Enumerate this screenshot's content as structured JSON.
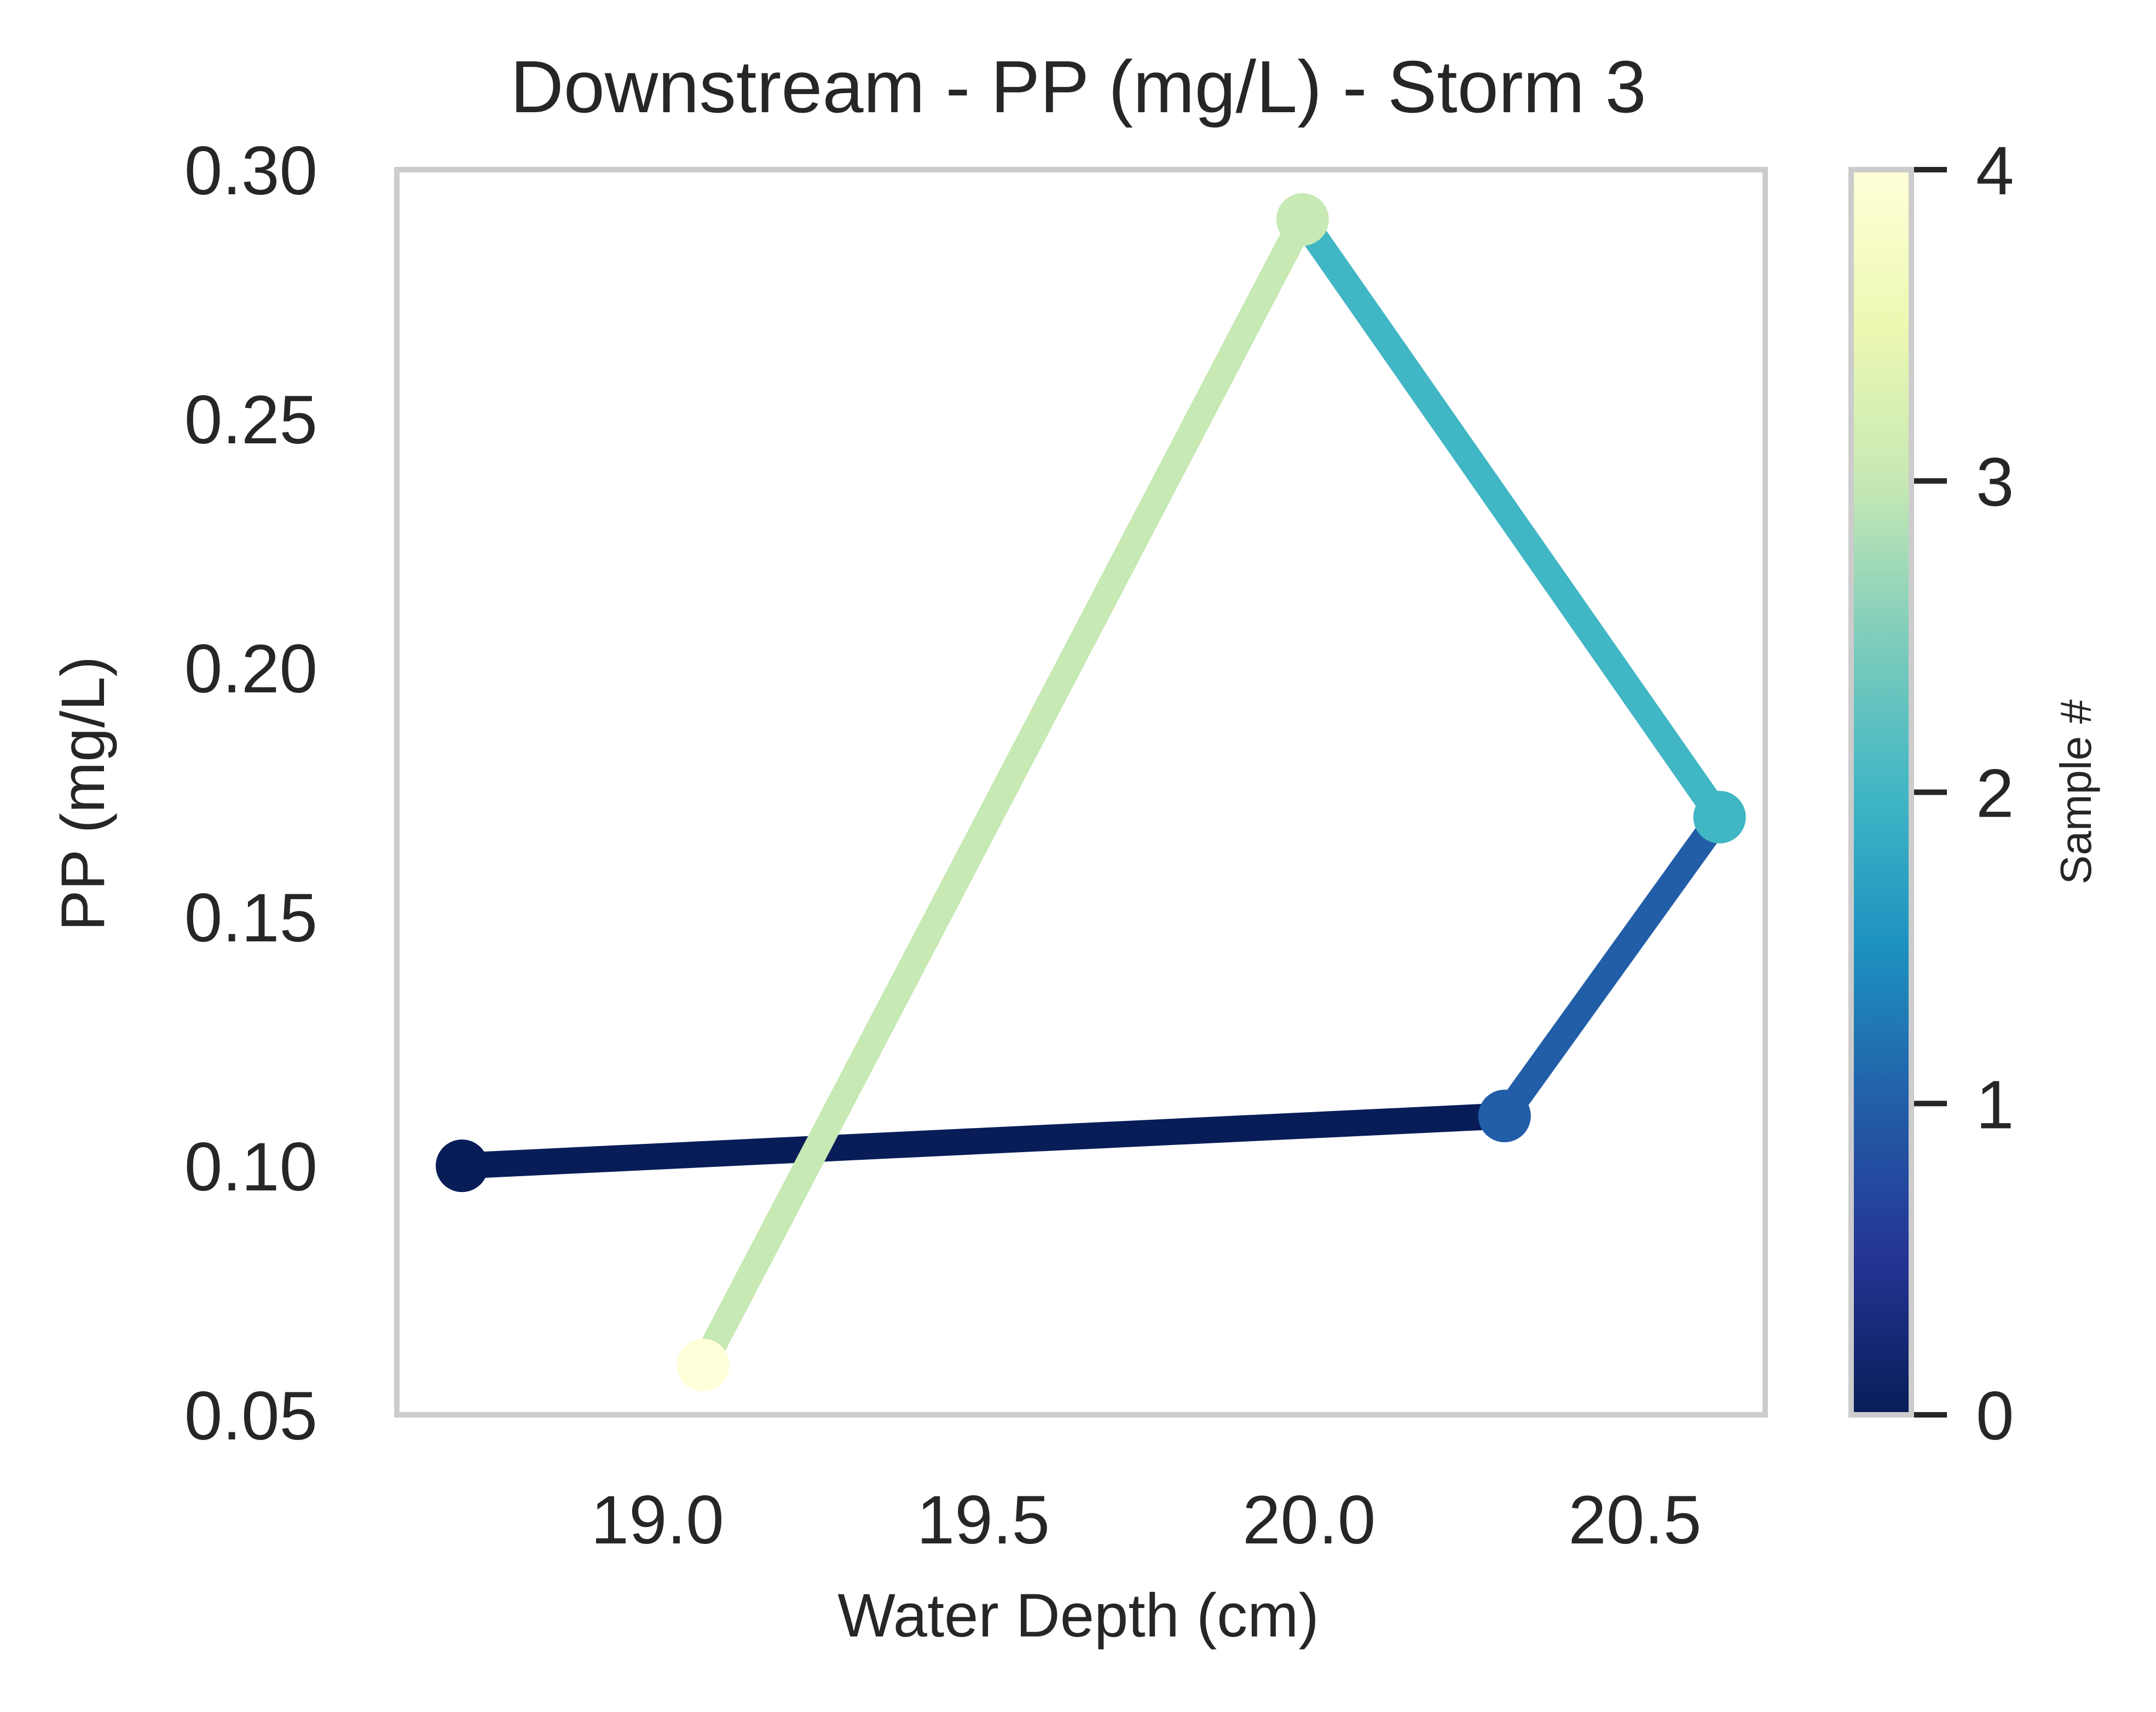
{
  "chart_data": {
    "type": "line",
    "title": "Downstream - PP (mg/L) - Storm 3",
    "xlabel": "Water Depth (cm)",
    "ylabel": "PP (mg/L)",
    "xlim": [
      18.6,
      20.7
    ],
    "ylim": [
      0.05,
      0.3
    ],
    "x_ticks": [
      19.0,
      19.5,
      20.0,
      20.5
    ],
    "x_tick_labels": [
      "19.0",
      "19.5",
      "20.0",
      "20.5"
    ],
    "y_ticks": [
      0.05,
      0.1,
      0.15,
      0.2,
      0.25,
      0.3
    ],
    "y_tick_labels": [
      "0.05",
      "0.10",
      "0.15",
      "0.20",
      "0.25",
      "0.30"
    ],
    "grid": false,
    "points": [
      {
        "sample": 0,
        "x": 18.7,
        "y": 0.1,
        "color": "#081d58"
      },
      {
        "sample": 1,
        "x": 20.3,
        "y": 0.11,
        "color": "#225ea8"
      },
      {
        "sample": 2,
        "x": 20.63,
        "y": 0.17,
        "color": "#41b6c4"
      },
      {
        "sample": 3,
        "x": 19.99,
        "y": 0.29,
        "color": "#c7e9b4"
      },
      {
        "sample": 4,
        "x": 19.07,
        "y": 0.06,
        "color": "#ffffd9"
      }
    ],
    "colorbar": {
      "label": "Sample #",
      "range": [
        0,
        4
      ],
      "ticks": [
        0,
        1,
        2,
        3,
        4
      ],
      "tick_labels": [
        "0",
        "1",
        "2",
        "3",
        "4"
      ],
      "colormap": "YlGnBu",
      "stops": [
        "#081d58",
        "#253494",
        "#225ea8",
        "#1d91c0",
        "#41b6c4",
        "#7fcdbb",
        "#c7e9b4",
        "#edf8b1",
        "#ffffd9"
      ]
    }
  }
}
